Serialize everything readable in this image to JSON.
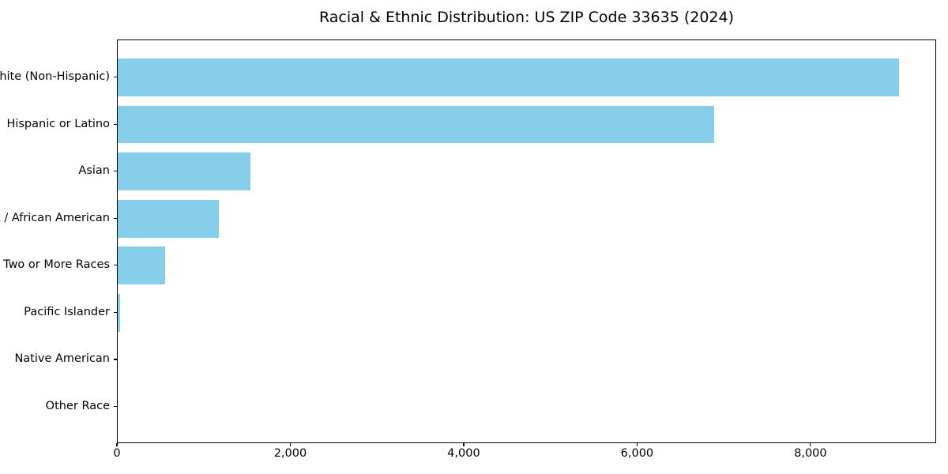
{
  "chart_data": {
    "type": "bar",
    "orientation": "horizontal",
    "title": "Racial & Ethnic Distribution: US ZIP Code 33635 (2024)",
    "categories": [
      "White (Non-Hispanic)",
      "Hispanic or Latino",
      "Asian",
      "Black / African American",
      "Two or More Races",
      "Pacific Islander",
      "Native American",
      "Other Race"
    ],
    "values": [
      9015,
      6880,
      1530,
      1165,
      550,
      30,
      0,
      0
    ],
    "xlabel": "",
    "ylabel": "",
    "xlim": [
      0,
      9450
    ],
    "xticks": [
      0,
      2000,
      4000,
      6000,
      8000
    ],
    "xtick_labels": [
      "0",
      "2,000",
      "4,000",
      "6,000",
      "8,000"
    ],
    "bar_color": "#87CEEB",
    "axis_color": "#000000",
    "background_color": "#ffffff",
    "grid": false,
    "legend": null
  }
}
